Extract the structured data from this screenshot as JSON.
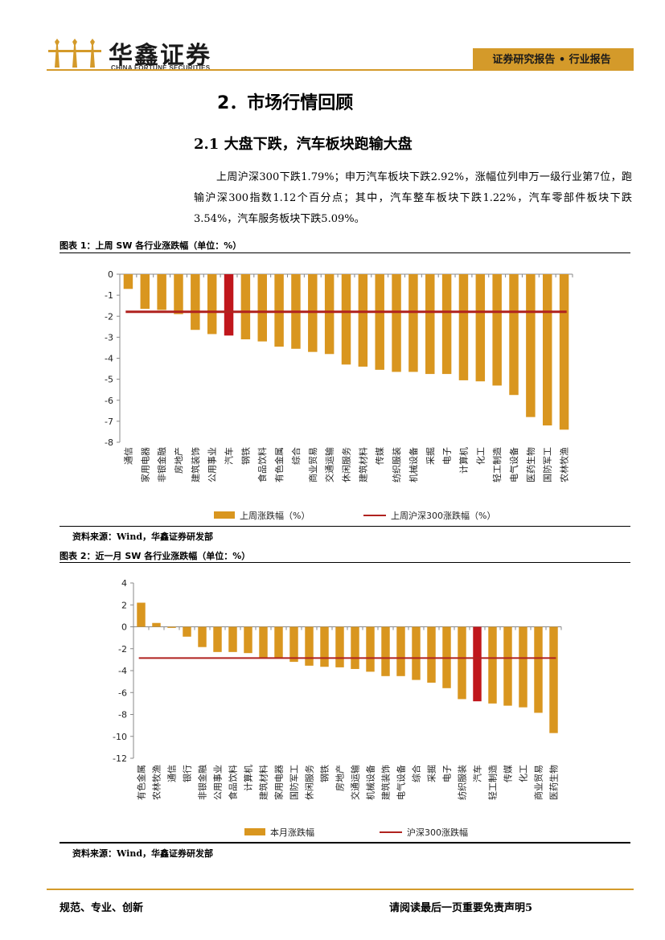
{
  "header": {
    "company_cn": "华鑫证券",
    "company_en": "CHINA FORTUNE SECURITIES",
    "report_type": "证券研究报告 • 行业报告"
  },
  "section": {
    "title": "2．市场行情回顾",
    "subtitle": "2.1 大盘下跌，汽车板块跑输大盘",
    "paragraph": "上周沪深300下跌1.79%；申万汽车板块下跌2.92%，涨幅位列申万一级行业第7位，跑输沪深300指数1.12个百分点；其中，汽车整车板块下跌1.22%，汽车零部件板块下跌3.54%，汽车服务板块下跌5.09%。"
  },
  "chart_data": [
    {
      "type": "bar",
      "title": "图表 1：上周 SW 各行业涨跌幅（单位：%）",
      "categories": [
        "通信",
        "家用电器",
        "非银金融",
        "房地产",
        "建筑装饰",
        "公用事业",
        "汽车",
        "钢铁",
        "食品饮料",
        "有色金属",
        "综合",
        "商业贸易",
        "交通运输",
        "休闲服务",
        "建筑材料",
        "传媒",
        "纺织服装",
        "机械设备",
        "采掘",
        "电子",
        "计算机",
        "化工",
        "轻工制造",
        "电气设备",
        "医药生物",
        "国防军工",
        "农林牧渔"
      ],
      "series": [
        {
          "name": "上周涨跌幅（%）",
          "values": [
            -0.7,
            -1.65,
            -1.7,
            -1.9,
            -2.65,
            -2.85,
            -2.92,
            -3.1,
            -3.2,
            -3.45,
            -3.55,
            -3.7,
            -3.8,
            -4.3,
            -4.4,
            -4.55,
            -4.65,
            -4.65,
            -4.75,
            -4.75,
            -5.05,
            -5.1,
            -5.3,
            -5.75,
            -6.8,
            -7.2,
            -7.4
          ]
        },
        {
          "name": "上周沪深300涨跌幅（%）",
          "value": -1.79
        }
      ],
      "highlight": "汽车",
      "yticks": [
        "0",
        "-1",
        "-2",
        "-3",
        "-4",
        "-5",
        "-6",
        "-7",
        "-8"
      ],
      "ylim": [
        -8,
        0
      ],
      "source": "资料来源：Wind，华鑫证券研发部"
    },
    {
      "type": "bar",
      "title": "图表 2：近一月 SW 各行业涨跌幅（单位：%）",
      "categories": [
        "有色金属",
        "农林牧渔",
        "通信",
        "银行",
        "非银金融",
        "公用事业",
        "食品饮料",
        "计算机",
        "建筑材料",
        "家用电器",
        "国防军工",
        "休闲服务",
        "钢铁",
        "房地产",
        "交通运输",
        "机械设备",
        "建筑装饰",
        "电气设备",
        "综合",
        "采掘",
        "电子",
        "纺织服装",
        "汽车",
        "轻工制造",
        "传媒",
        "化工",
        "商业贸易",
        "医药生物"
      ],
      "series": [
        {
          "name": "本月涨跌幅",
          "values": [
            2.2,
            0.35,
            -0.1,
            -0.9,
            -1.85,
            -2.3,
            -2.3,
            -2.4,
            -2.85,
            -2.9,
            -3.2,
            -3.55,
            -3.65,
            -3.7,
            -3.85,
            -4.1,
            -4.5,
            -4.5,
            -4.85,
            -5.1,
            -5.6,
            -6.6,
            -6.8,
            -7.0,
            -7.2,
            -7.35,
            -7.85,
            -9.7
          ]
        },
        {
          "name": "沪深300涨跌幅",
          "value": -2.85
        }
      ],
      "highlight": "汽车",
      "yticks": [
        "4",
        "2",
        "0",
        "-2",
        "-4",
        "-6",
        "-8",
        "-10",
        "-12"
      ],
      "ylim": [
        -12,
        4
      ],
      "source": "资料来源：Wind，华鑫证券研发部"
    }
  ],
  "colors": {
    "gold": "#d49a2a",
    "bar": "#d9961f",
    "highlight": "#c0171c",
    "line": "#b0221f"
  },
  "footer": {
    "left": "规范、专业、创新",
    "right": "请阅读最后一页重要免责声明5"
  }
}
